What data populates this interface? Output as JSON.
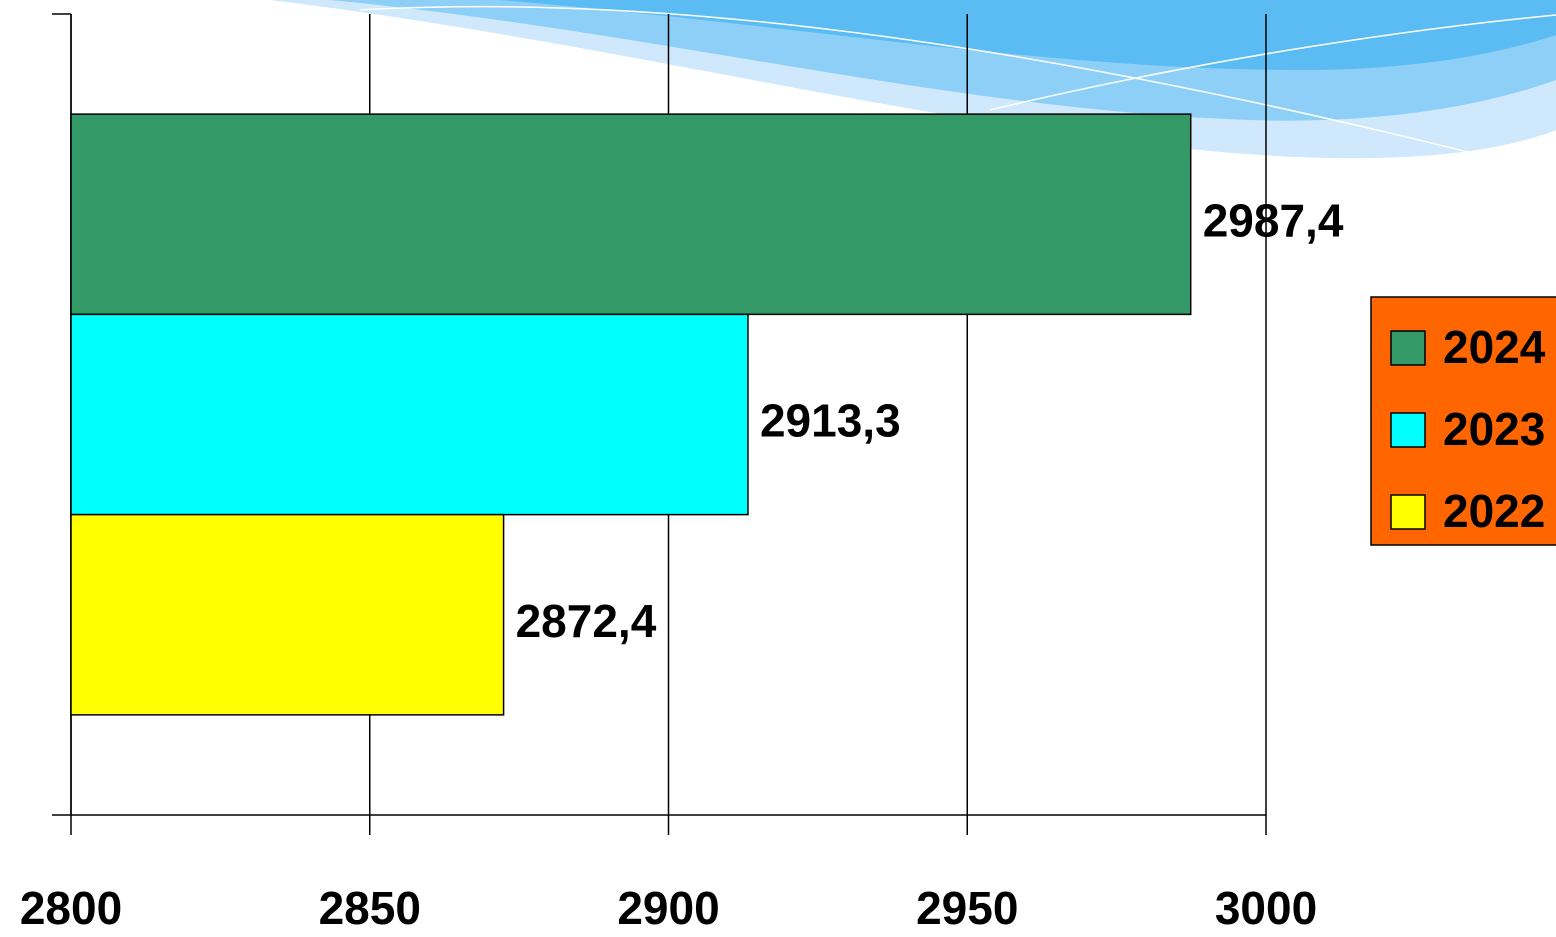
{
  "chart_data": {
    "type": "bar",
    "orientation": "horizontal",
    "categories": [
      null
    ],
    "series": [
      {
        "name": "2024",
        "color": "#339966",
        "values": [
          2987.4
        ],
        "value_labels": [
          "2987,4"
        ]
      },
      {
        "name": "2023",
        "color": "#00ffff",
        "values": [
          2913.3
        ],
        "value_labels": [
          "2913,3"
        ]
      },
      {
        "name": "2022",
        "color": "#ffff00",
        "values": [
          2872.4
        ],
        "value_labels": [
          "2872,4"
        ]
      }
    ],
    "xlim": [
      2800,
      3000
    ],
    "xticks": [
      2800,
      2850,
      2900,
      2950,
      3000
    ],
    "grid": true,
    "legend": "right",
    "legend_color": "#ff6600"
  }
}
